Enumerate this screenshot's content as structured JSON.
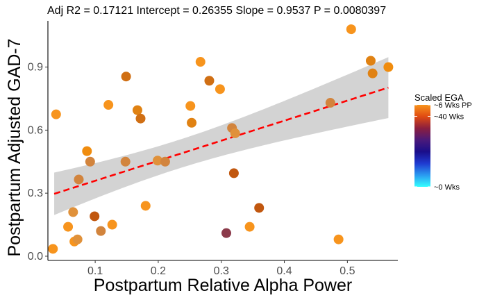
{
  "chart_data": {
    "type": "scatter",
    "title": "Adj R2 =  0.17121 Intercept = 0.26355  Slope = 0.9537  P = 0.0080397",
    "xlabel": "Postpartum Relative Alpha Power",
    "ylabel": "Postpartum Adjusted GAD-7",
    "xlim": [
      0.025,
      0.58
    ],
    "ylim": [
      -0.02,
      1.12
    ],
    "x_ticks": [
      {
        "value": 0.1,
        "label": "0.1"
      },
      {
        "value": 0.2,
        "label": "0.2"
      },
      {
        "value": 0.3,
        "label": "0.3"
      },
      {
        "value": 0.4,
        "label": "0.4"
      },
      {
        "value": 0.5,
        "label": "0.5"
      }
    ],
    "y_ticks": [
      {
        "value": 0.0,
        "label": "0.0"
      },
      {
        "value": 0.3,
        "label": "0.3"
      },
      {
        "value": 0.6,
        "label": "0.6"
      },
      {
        "value": 0.9,
        "label": "0.9"
      }
    ],
    "grid": false,
    "regression": {
      "intercept": 0.26355,
      "slope": 0.9537,
      "x_range": [
        0.035,
        0.565
      ],
      "line_color": "#ff0000",
      "line_style": "dashed",
      "ci_color": "#d3d3d3",
      "ci_half_width_at_ends": 0.145,
      "ci_half_width_at_center": 0.068,
      "ci_center_x": 0.23
    },
    "legend": {
      "title": "Scaled EGA",
      "position": "right",
      "gradient_top_to_bottom": [
        "#f7941d",
        "#e04a12",
        "#8b1e3f",
        "#4a1a7a",
        "#1a0e8a",
        "#1f3ad0",
        "#2a9af0",
        "#33ffff"
      ],
      "labels": [
        {
          "text": "~6 Wks PP",
          "level": 1.0
        },
        {
          "text": "~40 Wks",
          "level": 0.86
        },
        {
          "text": "~0 Wks",
          "level": 0.0
        }
      ]
    },
    "points": [
      {
        "x": 0.033,
        "y": 0.035,
        "color": "#f7941d"
      },
      {
        "x": 0.038,
        "y": 0.675,
        "color": "#f7941d"
      },
      {
        "x": 0.057,
        "y": 0.14,
        "color": "#f7941d"
      },
      {
        "x": 0.065,
        "y": 0.21,
        "color": "#e0913a"
      },
      {
        "x": 0.067,
        "y": 0.07,
        "color": "#f7941d"
      },
      {
        "x": 0.072,
        "y": 0.08,
        "color": "#e0913a"
      },
      {
        "x": 0.074,
        "y": 0.365,
        "color": "#d2843d"
      },
      {
        "x": 0.087,
        "y": 0.5,
        "color": "#f08c0e"
      },
      {
        "x": 0.092,
        "y": 0.45,
        "color": "#d2843d"
      },
      {
        "x": 0.099,
        "y": 0.19,
        "color": "#c1570f"
      },
      {
        "x": 0.109,
        "y": 0.12,
        "color": "#d2843d"
      },
      {
        "x": 0.121,
        "y": 0.72,
        "color": "#f7941d"
      },
      {
        "x": 0.127,
        "y": 0.15,
        "color": "#f7941d"
      },
      {
        "x": 0.148,
        "y": 0.45,
        "color": "#d2843d"
      },
      {
        "x": 0.149,
        "y": 0.855,
        "color": "#d06f14"
      },
      {
        "x": 0.167,
        "y": 0.695,
        "color": "#e08213"
      },
      {
        "x": 0.172,
        "y": 0.655,
        "color": "#d06f14"
      },
      {
        "x": 0.18,
        "y": 0.24,
        "color": "#f7941d"
      },
      {
        "x": 0.199,
        "y": 0.455,
        "color": "#e0913a"
      },
      {
        "x": 0.211,
        "y": 0.45,
        "color": "#d2843d"
      },
      {
        "x": 0.251,
        "y": 0.715,
        "color": "#f7941d"
      },
      {
        "x": 0.253,
        "y": 0.635,
        "color": "#e08213"
      },
      {
        "x": 0.267,
        "y": 0.925,
        "color": "#f7941d"
      },
      {
        "x": 0.281,
        "y": 0.835,
        "color": "#d06f14"
      },
      {
        "x": 0.298,
        "y": 0.795,
        "color": "#f7941d"
      },
      {
        "x": 0.308,
        "y": 0.11,
        "color": "#8b3a4a"
      },
      {
        "x": 0.317,
        "y": 0.61,
        "color": "#d2843d"
      },
      {
        "x": 0.32,
        "y": 0.395,
        "color": "#c1570f"
      },
      {
        "x": 0.322,
        "y": 0.585,
        "color": "#e0913a"
      },
      {
        "x": 0.345,
        "y": 0.14,
        "color": "#f7941d"
      },
      {
        "x": 0.36,
        "y": 0.23,
        "color": "#c1570f"
      },
      {
        "x": 0.473,
        "y": 0.73,
        "color": "#d2843d"
      },
      {
        "x": 0.486,
        "y": 0.08,
        "color": "#f7941d"
      },
      {
        "x": 0.506,
        "y": 1.08,
        "color": "#f7941d"
      },
      {
        "x": 0.537,
        "y": 0.93,
        "color": "#e08213"
      },
      {
        "x": 0.54,
        "y": 0.87,
        "color": "#e08213"
      },
      {
        "x": 0.565,
        "y": 0.9,
        "color": "#f08c0e"
      }
    ]
  }
}
